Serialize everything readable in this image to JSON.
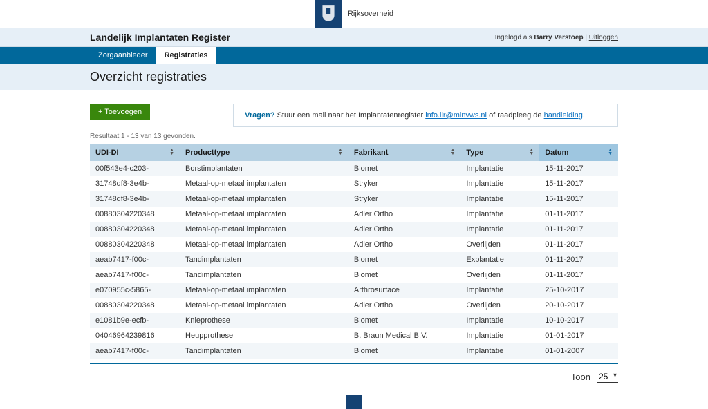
{
  "brand": {
    "name": "Rijksoverheid"
  },
  "header": {
    "app_title": "Landelijk Implantaten Register",
    "logged_in_prefix": "Ingelogd als",
    "user_name": "Barry Verstoep",
    "logout_label": "Uitloggen"
  },
  "nav": {
    "tabs": [
      {
        "label": "Zorgaanbieder",
        "active": false
      },
      {
        "label": "Registraties",
        "active": true
      }
    ]
  },
  "page": {
    "title": "Overzicht registraties"
  },
  "actions": {
    "add_label": "+ Toevoegen"
  },
  "helpbox": {
    "question": "Vragen?",
    "text_before": "Stuur een mail naar het Implantatenregister",
    "email": "info.lir@minvws.nl",
    "text_middle": "of raadpleeg de",
    "link_label": "handleiding"
  },
  "results": {
    "summary": "Resultaat 1 - 13 van 13 gevonden."
  },
  "table": {
    "columns": [
      "UDI-DI",
      "Producttype",
      "Fabrikant",
      "Type",
      "Datum"
    ],
    "rows": [
      [
        "00f543e4-c203-",
        "Borstimplantaten",
        "Biomet",
        "Implantatie",
        "15-11-2017"
      ],
      [
        "31748df8-3e4b-",
        "Metaal-op-metaal implantaten",
        "Stryker",
        "Implantatie",
        "15-11-2017"
      ],
      [
        "31748df8-3e4b-",
        "Metaal-op-metaal implantaten",
        "Stryker",
        "Implantatie",
        "15-11-2017"
      ],
      [
        "00880304220348",
        "Metaal-op-metaal implantaten",
        "Adler Ortho",
        "Implantatie",
        "01-11-2017"
      ],
      [
        "00880304220348",
        "Metaal-op-metaal implantaten",
        "Adler Ortho",
        "Implantatie",
        "01-11-2017"
      ],
      [
        "00880304220348",
        "Metaal-op-metaal implantaten",
        "Adler Ortho",
        "Overlijden",
        "01-11-2017"
      ],
      [
        "aeab7417-f00c-",
        "Tandimplantaten",
        "Biomet",
        "Explantatie",
        "01-11-2017"
      ],
      [
        "aeab7417-f00c-",
        "Tandimplantaten",
        "Biomet",
        "Overlijden",
        "01-11-2017"
      ],
      [
        "e070955c-5865-",
        "Metaal-op-metaal implantaten",
        "Arthrosurface",
        "Implantatie",
        "25-10-2017"
      ],
      [
        "00880304220348",
        "Metaal-op-metaal implantaten",
        "Adler Ortho",
        "Overlijden",
        "20-10-2017"
      ],
      [
        "e1081b9e-ecfb-",
        "Knieprothese",
        "Biomet",
        "Implantatie",
        "10-10-2017"
      ],
      [
        "04046964239816",
        "Heupprothese",
        "B. Braun Medical B.V.",
        "Implantatie",
        "01-01-2017"
      ],
      [
        "aeab7417-f00c-",
        "Tandimplantaten",
        "Biomet",
        "Implantatie",
        "01-01-2007"
      ]
    ]
  },
  "pager": {
    "label": "Toon",
    "value": "25"
  },
  "colors": {
    "primary": "#01689b",
    "header_bg": "#e6eff7",
    "th_bg": "#b6d1e3",
    "th_active_bg": "#9ec6e0",
    "row_alt": "#f2f6f9",
    "btn_add": "#39870c",
    "logo_bg": "#154273"
  }
}
